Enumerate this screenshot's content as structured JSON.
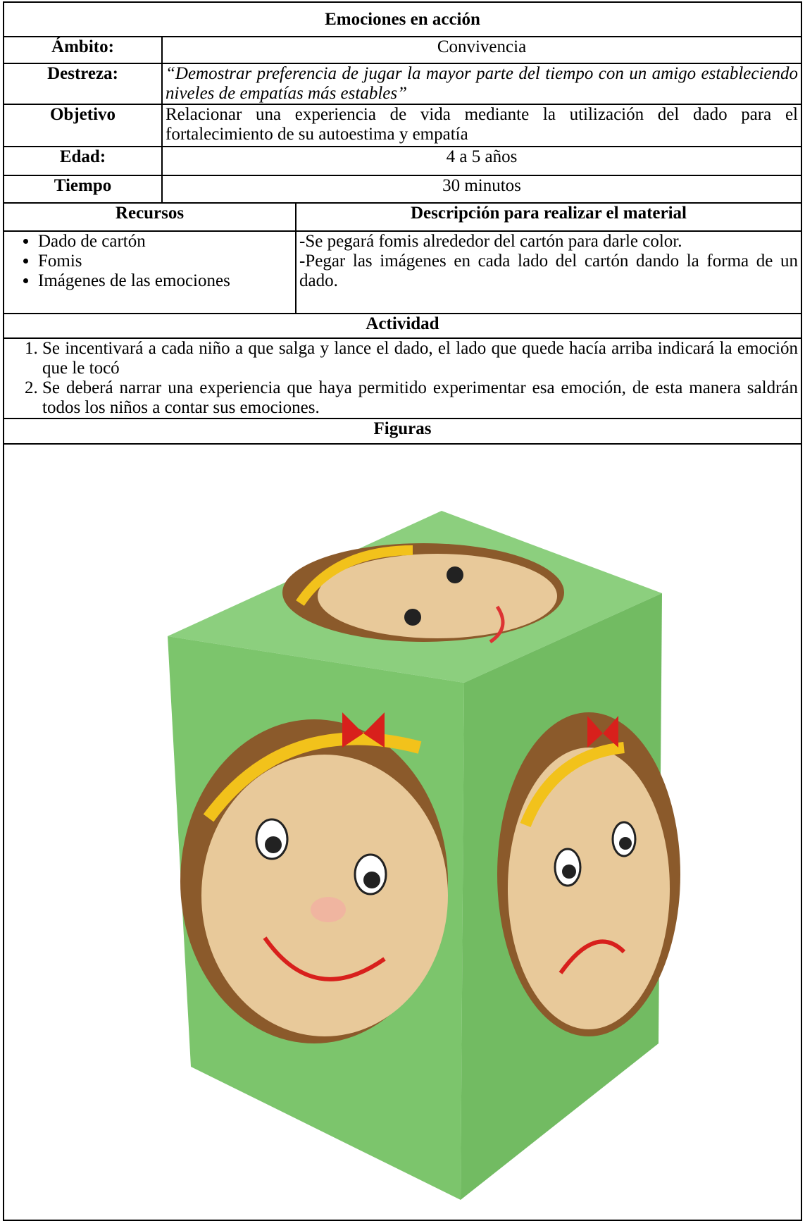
{
  "title": "Emociones en acción",
  "rows": [
    {
      "label": "Ámbito:",
      "value": "Convivencia"
    },
    {
      "label": "Destreza:",
      "value": "“Demostrar preferencia de jugar la mayor parte del tiempo con un amigo estableciendo niveles de empatías más estables”"
    },
    {
      "label": "Objetivo",
      "value": "Relacionar una experiencia de vida mediante la utilización del dado para el fortalecimiento de su autoestima y empatía"
    },
    {
      "label": "Edad:",
      "value": "4 a 5 años"
    },
    {
      "label": "Tiempo",
      "value": "30 minutos"
    }
  ],
  "resources": {
    "header": "Recursos",
    "items": [
      "Dado de cartón",
      "Fomis",
      "Imágenes de las emociones"
    ]
  },
  "description": {
    "header": "Descripción para realizar el material",
    "items": [
      "-Se pegará fomis alrededor del cartón para darle color.",
      "-Pegar las imágenes en cada lado del cartón dando la forma de un dado."
    ]
  },
  "activity": {
    "header": "Actividad",
    "steps": [
      "Se incentivará a cada niño a que salga y lance el dado, el lado que quede hacía arriba indicará la emoción que le tocó",
      "Se deberá narrar una experiencia que haya permitido experimentar esa emoción, de esta manera saldrán todos los niños a contar sus emociones."
    ]
  },
  "figures": {
    "header": "Figuras"
  }
}
